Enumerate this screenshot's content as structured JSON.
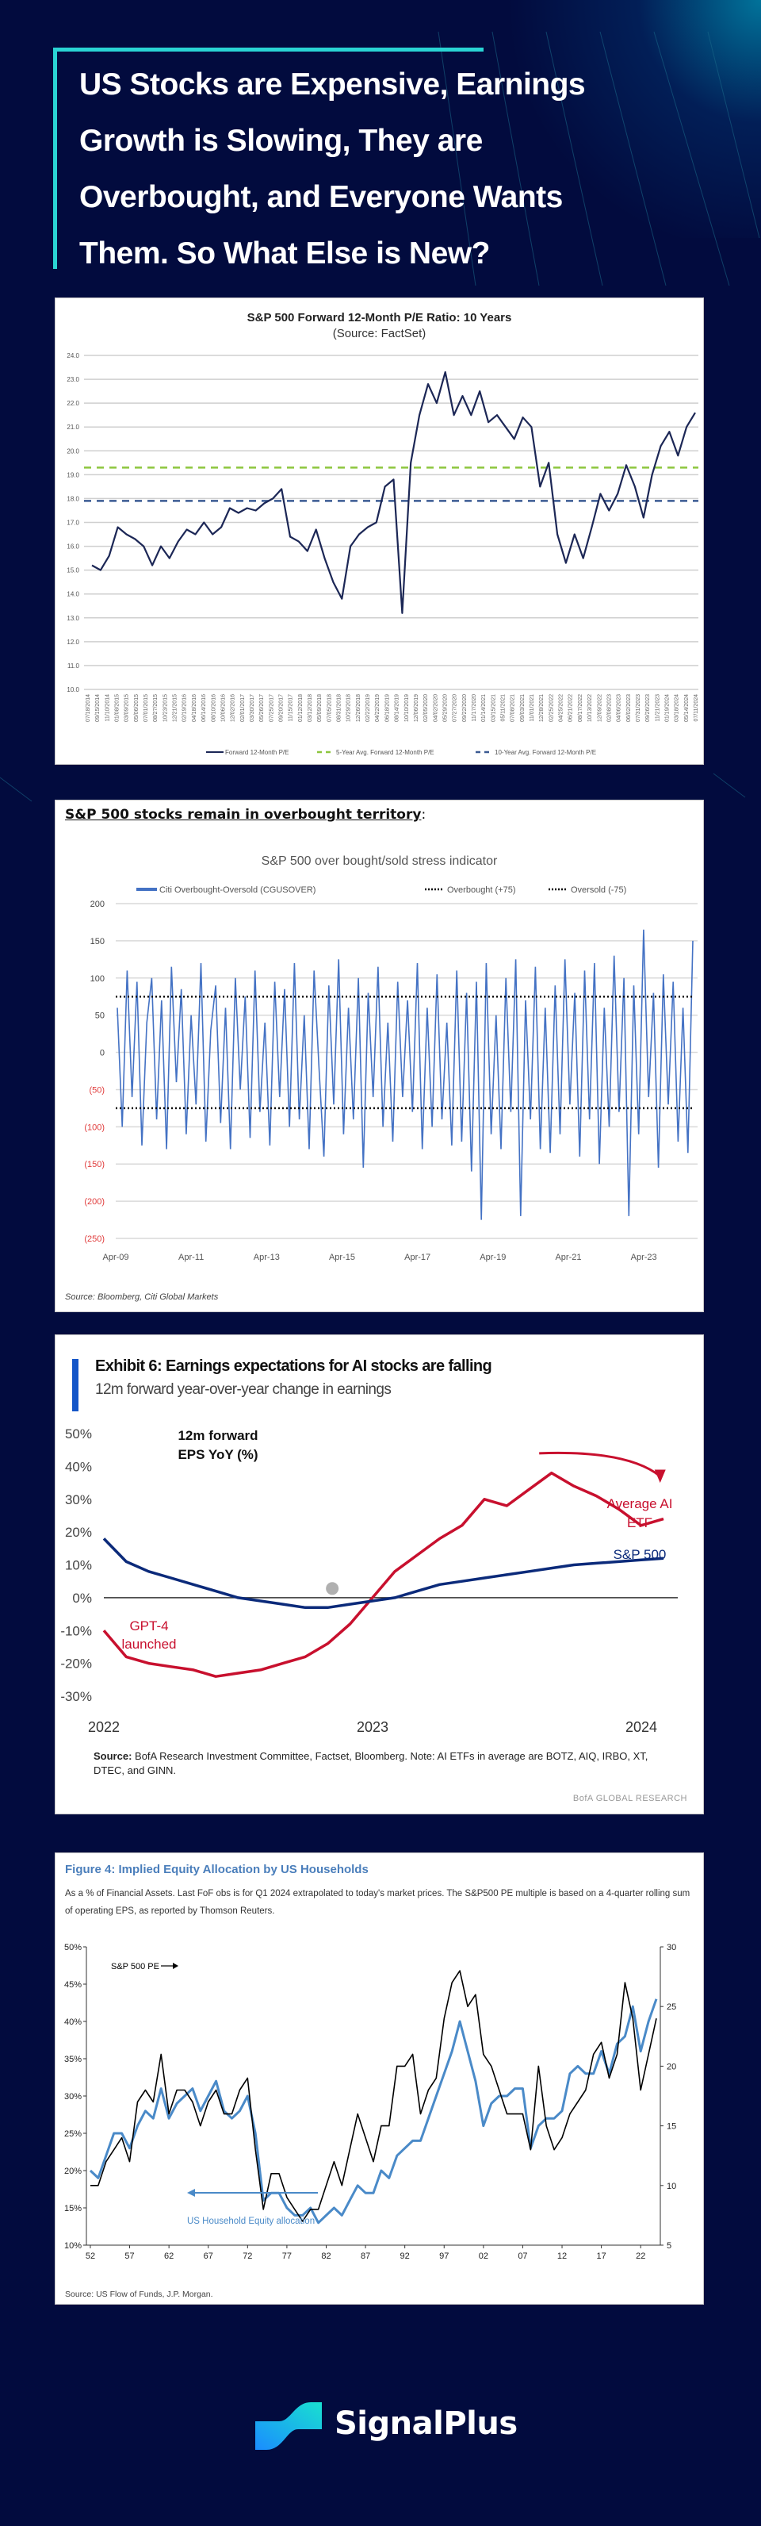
{
  "header": {
    "title_lines": [
      "US Stocks are Expensive, Earnings",
      "Growth is Slowing, They are",
      "Overbought, and Everyone Wants",
      "Them.  So What Else is New?"
    ]
  },
  "chart_data": [
    {
      "type": "line",
      "title": "S&P 500 Forward 12-Month P/E Ratio: 10 Years",
      "subtitle": "(Source: FactSet)",
      "ylim": [
        10,
        24
      ],
      "y_ticks": [
        "10.0",
        "11.0",
        "12.0",
        "13.0",
        "14.0",
        "15.0",
        "16.0",
        "17.0",
        "18.0",
        "19.0",
        "20.0",
        "21.0",
        "22.0",
        "23.0",
        "24.0"
      ],
      "x_labels": [
        "07/18/2014",
        "09/15/2014",
        "11/10/2014",
        "01/08/2015",
        "03/09/2015",
        "05/06/2015",
        "07/01/2015",
        "08/27/2015",
        "10/23/2015",
        "12/21/2015",
        "02/19/2016",
        "04/18/2016",
        "06/14/2016",
        "08/10/2016",
        "10/06/2016",
        "12/02/2016",
        "02/01/2017",
        "03/30/2017",
        "05/26/2017",
        "07/25/2017",
        "09/20/2017",
        "11/15/2017",
        "01/12/2018",
        "03/12/2018",
        "05/09/2018",
        "07/05/2018",
        "08/31/2018",
        "10/29/2018",
        "12/26/2018",
        "02/22/2019",
        "04/22/2019",
        "06/18/2019",
        "08/14/2019",
        "10/10/2019",
        "12/06/2019",
        "02/05/2020",
        "04/02/2020",
        "05/29/2020",
        "07/27/2020",
        "09/22/2020",
        "11/17/2020",
        "01/14/2021",
        "03/15/2021",
        "05/11/2021",
        "07/08/2021",
        "09/03/2021",
        "11/01/2021",
        "12/28/2021",
        "02/25/2022",
        "04/25/2022",
        "06/21/2022",
        "08/17/2022",
        "10/13/2022",
        "12/09/2022",
        "02/08/2023",
        "04/06/2023",
        "06/02/2023",
        "07/31/2023",
        "09/26/2023",
        "11/21/2023",
        "01/19/2024",
        "03/18/2024",
        "05/14/2024",
        "07/11/2024"
      ],
      "grid": true,
      "legend": "bottom",
      "series": [
        {
          "name": "Forward 12-Month P/E",
          "color": "#1c2756",
          "values": [
            15.2,
            15.0,
            15.6,
            16.8,
            16.5,
            16.3,
            16.0,
            15.2,
            16.0,
            15.5,
            16.2,
            16.7,
            16.5,
            17.0,
            16.5,
            16.8,
            17.6,
            17.4,
            17.6,
            17.5,
            17.8,
            18.0,
            18.4,
            16.4,
            16.2,
            15.8,
            16.7,
            15.5,
            14.5,
            13.8,
            16.0,
            16.5,
            16.8,
            17.0,
            18.5,
            18.8,
            13.2,
            19.5,
            21.5,
            22.8,
            22.0,
            23.3,
            21.5,
            22.3,
            21.5,
            22.5,
            21.2,
            21.5,
            21.0,
            20.5,
            21.4,
            21.0,
            18.5,
            19.5,
            16.5,
            15.3,
            16.5,
            15.5,
            16.8,
            18.2,
            17.5,
            18.2,
            19.4,
            18.5,
            17.2,
            19.0,
            20.2,
            20.8,
            19.8,
            21.0,
            21.6
          ]
        }
      ],
      "reference_lines": [
        {
          "name": "5-Year Avg. Forward 12-Month P/E",
          "value": 19.3,
          "color": "#8dc63f"
        },
        {
          "name": "10-Year Avg. Forward 12-Month P/E",
          "value": 17.9,
          "color": "#3a5a92"
        }
      ]
    },
    {
      "type": "line",
      "heading": "S&P 500 stocks remain in overbought territory",
      "heading_suffix": ":",
      "title": "S&P 500 over bought/sold stress indicator",
      "ylim": [
        -250,
        200
      ],
      "y_ticks": [
        {
          "value": 200,
          "label": "200"
        },
        {
          "value": 150,
          "label": "150"
        },
        {
          "value": 100,
          "label": "100"
        },
        {
          "value": 50,
          "label": "50"
        },
        {
          "value": 0,
          "label": "0"
        },
        {
          "value": -50,
          "label": "(50)"
        },
        {
          "value": -100,
          "label": "(100)"
        },
        {
          "value": -150,
          "label": "(150)"
        },
        {
          "value": -200,
          "label": "(200)"
        },
        {
          "value": -250,
          "label": "(250)"
        }
      ],
      "negative_label_color": "#e03c3c",
      "x_range": [
        2009.25,
        2024.55
      ],
      "x_ticks": [
        {
          "value": 2009.25,
          "label": "Apr-09"
        },
        {
          "value": 2011.25,
          "label": "Apr-11"
        },
        {
          "value": 2013.25,
          "label": "Apr-13"
        },
        {
          "value": 2015.25,
          "label": "Apr-15"
        },
        {
          "value": 2017.25,
          "label": "Apr-17"
        },
        {
          "value": 2019.25,
          "label": "Apr-19"
        },
        {
          "value": 2021.25,
          "label": "Apr-21"
        },
        {
          "value": 2023.25,
          "label": "Apr-23"
        }
      ],
      "grid": true,
      "legend": "top",
      "series": [
        {
          "name": "Citi Overbought-Oversold (CGUSOVER)",
          "color": "#4472c4",
          "values": [
            60,
            -100,
            110,
            -60,
            95,
            -125,
            40,
            100,
            -90,
            70,
            -130,
            115,
            -40,
            85,
            -110,
            50,
            -70,
            120,
            -120,
            30,
            90,
            -95,
            60,
            -130,
            100,
            -50,
            75,
            -115,
            110,
            -80,
            40,
            -125,
            95,
            -60,
            85,
            -100,
            120,
            -90,
            50,
            -130,
            110,
            -20,
            -140,
            90,
            -70,
            125,
            -110,
            60,
            -90,
            100,
            -155,
            80,
            -60,
            115,
            -100,
            40,
            -120,
            95,
            -60,
            70,
            -80,
            120,
            -130,
            60,
            -100,
            105,
            -90,
            40,
            -125,
            110,
            -120,
            80,
            -160,
            95,
            -225,
            120,
            -110,
            50,
            -130,
            100,
            -80,
            125,
            -220,
            70,
            -90,
            115,
            -130,
            60,
            -135,
            90,
            -110,
            125,
            -70,
            80,
            -140,
            110,
            -90,
            120,
            -150,
            60,
            -100,
            130,
            -80,
            100,
            -220,
            90,
            -110,
            165,
            -60,
            80,
            -155,
            105,
            -70,
            95,
            -120,
            60,
            -135,
            150
          ]
        }
      ],
      "reference_lines": [
        {
          "name": "Overbought (+75)",
          "value": 75,
          "color": "#000000"
        },
        {
          "name": "Oversold (-75)",
          "value": -75,
          "color": "#000000"
        }
      ],
      "source": "Source: Bloomberg, Citi Global Markets"
    },
    {
      "type": "line",
      "title": "Exhibit 6: Earnings expectations for AI stocks are falling",
      "subtitle": "12m forward year-over-year change in earnings",
      "ylim": [
        -30,
        50
      ],
      "y_ticks": [
        {
          "value": 50,
          "label": "50%"
        },
        {
          "value": 40,
          "label": "40%"
        },
        {
          "value": 30,
          "label": "30%"
        },
        {
          "value": 20,
          "label": "20%"
        },
        {
          "value": 10,
          "label": "10%"
        },
        {
          "value": 0,
          "label": "0%"
        },
        {
          "value": -10,
          "label": "-10%"
        },
        {
          "value": -20,
          "label": "-20%"
        },
        {
          "value": -30,
          "label": "-30%"
        }
      ],
      "x_range": [
        2022,
        2024.13
      ],
      "x_ticks": [
        {
          "value": 2022,
          "label": "2022"
        },
        {
          "value": 2023,
          "label": "2023"
        },
        {
          "value": 2024,
          "label": "2024"
        }
      ],
      "grid": false,
      "series": [
        {
          "name": "Average AI ETF",
          "color": "#c8102e",
          "start": 2022.0,
          "step": 0.0833,
          "values": [
            -10,
            -18,
            -20,
            -21,
            -22,
            -24,
            -23,
            -22,
            -20,
            -18,
            -14,
            -8,
            0,
            8,
            13,
            18,
            22,
            30,
            28,
            33,
            38,
            34,
            31,
            27,
            22,
            24
          ]
        },
        {
          "name": "S&P 500",
          "color": "#0b2a7a",
          "start": 2022.0,
          "step": 0.0833,
          "values": [
            18,
            11,
            8,
            6,
            4,
            2,
            0,
            -1,
            -2,
            -3,
            -3,
            -2,
            -1,
            0,
            2,
            4,
            5,
            6,
            7,
            8,
            9,
            10,
            10.5,
            11,
            11.5,
            12
          ]
        }
      ],
      "annotations": {
        "metric_line1": "12m forward",
        "metric_line2": "EPS YoY (%)",
        "ai_label_line1": "Average AI",
        "ai_label_line2": "ETF",
        "spx_label": "S&P 500",
        "event_line1": "GPT-4",
        "event_line2": "launched",
        "event_marker_color": "#b0b0b0"
      },
      "source_bold": "Source:",
      "source": " BofA Research Investment Committee, Factset, Bloomberg. Note: AI ETFs in average are BOTZ, AIQ, IRBO, XT, DTEC, and GINN.",
      "brand": "BofA GLOBAL RESEARCH"
    },
    {
      "type": "line",
      "title": "Figure 4: Implied Equity Allocation by US Households",
      "description": "As a % of Financial Assets. Last FoF obs is for Q1 2024 extrapolated to today's market prices. The S&P500 PE multiple is based on a 4-quarter rolling sum of operating EPS, as reported by Thomson Reuters.",
      "ylim_left": [
        10,
        50
      ],
      "ylim_right": [
        5,
        30
      ],
      "y_ticks_left": [
        {
          "value": 50,
          "label": "50%"
        },
        {
          "value": 45,
          "label": "45%"
        },
        {
          "value": 40,
          "label": "40%"
        },
        {
          "value": 35,
          "label": "35%"
        },
        {
          "value": 30,
          "label": "30%"
        },
        {
          "value": 25,
          "label": "25%"
        },
        {
          "value": 20,
          "label": "20%"
        },
        {
          "value": 15,
          "label": "15%"
        },
        {
          "value": 10,
          "label": "10%"
        }
      ],
      "y_ticks_right": [
        {
          "value": 30,
          "label": "30"
        },
        {
          "value": 25,
          "label": "25"
        },
        {
          "value": 20,
          "label": "20"
        },
        {
          "value": 15,
          "label": "15"
        },
        {
          "value": 10,
          "label": "10"
        },
        {
          "value": 5,
          "label": "5"
        }
      ],
      "x_range": [
        1951.5,
        2024.5
      ],
      "x_ticks": [
        {
          "value": 1952,
          "label": "52"
        },
        {
          "value": 1957,
          "label": "57"
        },
        {
          "value": 1962,
          "label": "62"
        },
        {
          "value": 1967,
          "label": "67"
        },
        {
          "value": 1972,
          "label": "72"
        },
        {
          "value": 1977,
          "label": "77"
        },
        {
          "value": 1982,
          "label": "82"
        },
        {
          "value": 1987,
          "label": "87"
        },
        {
          "value": 1992,
          "label": "92"
        },
        {
          "value": 1997,
          "label": "97"
        },
        {
          "value": 2002,
          "label": "02"
        },
        {
          "value": 2007,
          "label": "07"
        },
        {
          "value": 2012,
          "label": "12"
        },
        {
          "value": 2017,
          "label": "17"
        },
        {
          "value": 2022,
          "label": "22"
        }
      ],
      "series": [
        {
          "name": "US Household Equity allocation",
          "axis": "left",
          "color": "#4a8ac8",
          "start": 1952,
          "values": [
            20,
            19,
            22,
            25,
            25,
            23,
            26,
            28,
            27,
            31,
            27,
            29,
            30,
            31,
            28,
            30,
            32,
            28,
            27,
            28,
            30,
            25,
            16,
            17,
            17,
            15,
            14,
            14,
            15,
            13,
            14,
            15,
            14,
            16,
            18,
            17,
            17,
            20,
            19,
            22,
            23,
            24,
            24,
            27,
            30,
            33,
            36,
            40,
            36,
            32,
            26,
            29,
            30,
            30,
            31,
            31,
            23,
            26,
            27,
            27,
            28,
            33,
            34,
            33,
            33,
            36,
            33,
            37,
            38,
            42,
            36,
            40,
            43
          ]
        },
        {
          "name": "S&P 500 PE",
          "axis": "right",
          "color": "#000000",
          "start": 1952,
          "values": [
            10,
            10,
            12,
            13,
            14,
            12,
            17,
            18,
            17,
            21,
            16,
            18,
            18,
            17,
            15,
            17,
            18,
            16,
            16,
            18,
            19,
            13,
            8,
            11,
            11,
            9,
            8,
            7,
            8,
            8,
            10,
            12,
            10,
            13,
            16,
            14,
            12,
            15,
            15,
            20,
            20,
            21,
            16,
            18,
            19,
            24,
            27,
            28,
            25,
            26,
            21,
            20,
            18,
            16,
            16,
            16,
            13,
            20,
            15,
            13,
            14,
            16,
            17,
            18,
            21,
            22,
            19,
            21,
            27,
            24,
            18,
            21,
            24
          ]
        }
      ],
      "source": "Source: US Flow of Funds, J.P. Morgan."
    }
  ],
  "footer": {
    "brand": "SignalPlus"
  }
}
